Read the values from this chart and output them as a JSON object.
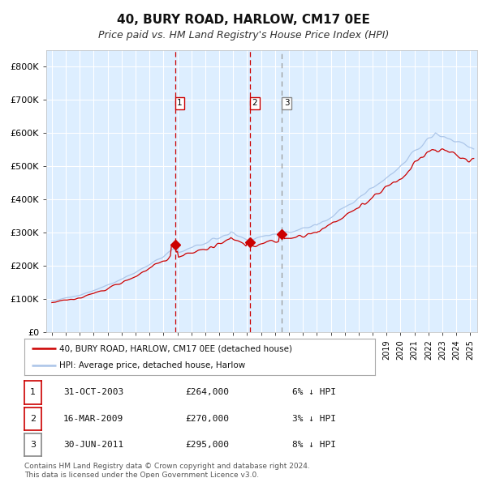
{
  "title": "40, BURY ROAD, HARLOW, CM17 0EE",
  "subtitle": "Price paid vs. HM Land Registry's House Price Index (HPI)",
  "title_fontsize": 11,
  "subtitle_fontsize": 9,
  "plot_bg_color": "#ddeeff",
  "grid_color": "#ffffff",
  "sale_dates_num": [
    2003.83,
    2009.21,
    2011.5
  ],
  "sale_prices": [
    264000,
    270000,
    295000
  ],
  "sale_labels": [
    "1",
    "2",
    "3"
  ],
  "sale_line_colors": [
    "#cc0000",
    "#cc0000",
    "#999999"
  ],
  "sale_label_edge_colors": [
    "#cc0000",
    "#cc0000",
    "#888888"
  ],
  "legend_property_label": "40, BURY ROAD, HARLOW, CM17 0EE (detached house)",
  "legend_hpi_label": "HPI: Average price, detached house, Harlow",
  "property_line_color": "#cc0000",
  "hpi_line_color": "#aac4e8",
  "marker_color": "#cc0000",
  "table_rows": [
    [
      "1",
      "31-OCT-2003",
      "£264,000",
      "6% ↓ HPI"
    ],
    [
      "2",
      "16-MAR-2009",
      "£270,000",
      "3% ↓ HPI"
    ],
    [
      "3",
      "30-JUN-2011",
      "£295,000",
      "8% ↓ HPI"
    ]
  ],
  "footnote": "Contains HM Land Registry data © Crown copyright and database right 2024.\nThis data is licensed under the Open Government Licence v3.0.",
  "ylim": [
    0,
    850000
  ],
  "yticks": [
    0,
    100000,
    200000,
    300000,
    400000,
    500000,
    600000,
    700000,
    800000
  ],
  "ytick_labels": [
    "£0",
    "£100K",
    "£200K",
    "£300K",
    "£400K",
    "£500K",
    "£600K",
    "£700K",
    "£800K"
  ],
  "xlim_start": 1994.6,
  "xlim_end": 2025.5
}
